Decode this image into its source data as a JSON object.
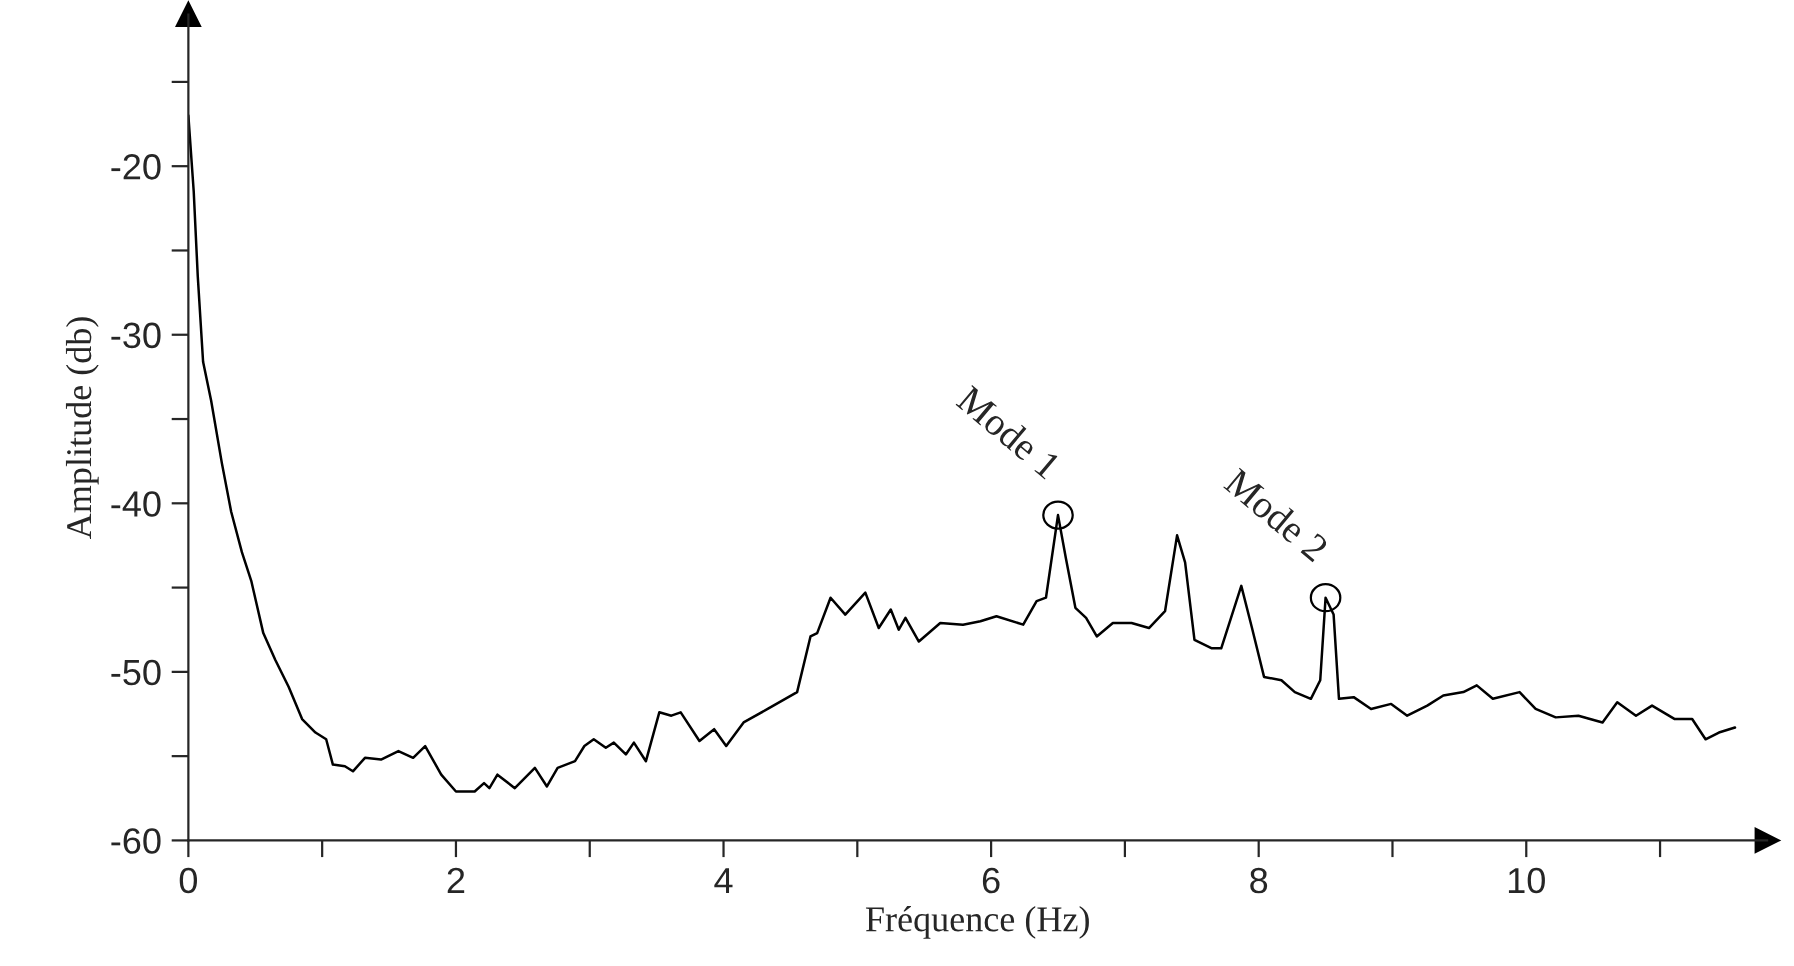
{
  "chart_data": {
    "type": "line",
    "xlabel": "Fréquence (Hz)",
    "ylabel": "Amplitude (db)",
    "x": [
      0,
      0.04,
      0.07,
      0.11,
      0.17,
      0.25,
      0.32,
      0.4,
      0.47,
      0.56,
      0.65,
      0.75,
      0.85,
      0.95,
      1.03,
      1.08,
      1.17,
      1.23,
      1.32,
      1.44,
      1.57,
      1.68,
      1.77,
      1.89,
      2.0,
      2.14,
      2.21,
      2.25,
      2.31,
      2.44,
      2.59,
      2.68,
      2.76,
      2.89,
      2.96,
      3.03,
      3.12,
      3.18,
      3.27,
      3.33,
      3.42,
      3.52,
      3.61,
      3.68,
      3.82,
      3.93,
      4.02,
      4.15,
      4.33,
      4.55,
      4.65,
      4.7,
      4.8,
      4.91,
      5.06,
      5.16,
      5.25,
      5.31,
      5.36,
      5.46,
      5.62,
      5.79,
      5.92,
      6.04,
      6.24,
      6.34,
      6.41,
      6.5,
      6.56,
      6.63,
      6.71,
      6.79,
      6.91,
      7.05,
      7.18,
      7.3,
      7.39,
      7.45,
      7.52,
      7.65,
      7.72,
      7.87,
      7.95,
      8.04,
      8.17,
      8.27,
      8.39,
      8.46,
      8.5,
      8.56,
      8.6,
      8.71,
      8.84,
      8.99,
      9.11,
      9.26,
      9.38,
      9.53,
      9.63,
      9.75,
      9.95,
      10.07,
      10.22,
      10.39,
      10.57,
      10.68,
      10.82,
      10.94,
      11.11,
      11.24,
      11.34,
      11.44,
      11.56
    ],
    "series": [
      {
        "color": "#000000",
        "values": [
          -17.0,
          -21.5,
          -26.5,
          -31.6,
          -33.9,
          -37.6,
          -40.5,
          -42.9,
          -44.6,
          -47.7,
          -49.3,
          -50.9,
          -52.8,
          -53.6,
          -54.0,
          -55.5,
          -55.6,
          -55.9,
          -55.1,
          -55.2,
          -54.7,
          -55.1,
          -54.4,
          -56.1,
          -57.1,
          -57.1,
          -56.6,
          -56.9,
          -56.1,
          -56.9,
          -55.7,
          -56.8,
          -55.7,
          -55.3,
          -54.4,
          -54.0,
          -54.5,
          -54.2,
          -54.9,
          -54.2,
          -55.3,
          -52.4,
          -52.6,
          -52.4,
          -54.1,
          -53.4,
          -54.4,
          -53.0,
          -52.2,
          -51.2,
          -47.9,
          -47.7,
          -45.6,
          -46.6,
          -45.3,
          -47.4,
          -46.3,
          -47.5,
          -46.8,
          -48.2,
          -47.1,
          -47.2,
          -47.0,
          -46.7,
          -47.2,
          -45.8,
          -45.6,
          -40.7,
          -43.3,
          -46.2,
          -46.8,
          -47.9,
          -47.1,
          -47.1,
          -47.4,
          -46.4,
          -41.9,
          -43.5,
          -48.1,
          -48.6,
          -48.6,
          -44.9,
          -47.4,
          -50.3,
          -50.5,
          -51.2,
          -51.6,
          -50.5,
          -45.6,
          -46.6,
          -51.6,
          -51.5,
          -52.2,
          -51.9,
          -52.6,
          -52.0,
          -51.4,
          -51.2,
          -50.8,
          -51.6,
          -51.2,
          -52.2,
          -52.7,
          -52.6,
          -53.0,
          -51.8,
          -52.6,
          -52.0,
          -52.8,
          -52.8,
          -54.0,
          -53.6,
          -53.3
        ]
      }
    ],
    "xlim": [
      0,
      11.8
    ],
    "ylim": [
      -60,
      -11
    ],
    "xticks": [
      0,
      {
        "value": 1,
        "label": null
      },
      2,
      {
        "value": 3,
        "label": null
      },
      4,
      {
        "value": 5,
        "label": null
      },
      6,
      {
        "value": 7,
        "label": null
      },
      8,
      {
        "value": 9,
        "label": null
      },
      10,
      {
        "value": 11,
        "label": null
      }
    ],
    "yticks": [
      -60,
      {
        "value": -55,
        "label": null
      },
      -50,
      {
        "value": -45,
        "label": null
      },
      -40,
      {
        "value": -35,
        "label": null
      },
      -30,
      {
        "value": -25,
        "label": null
      },
      -20,
      {
        "value": -15,
        "label": null
      }
    ],
    "annotations": [
      {
        "text": "Mode 1",
        "x": 6.5,
        "y": -40.7
      },
      {
        "text": "Mode 2",
        "x": 8.5,
        "y": -45.6
      }
    ],
    "grid": false,
    "legend": false,
    "marker": "none",
    "line_style": "solid"
  }
}
